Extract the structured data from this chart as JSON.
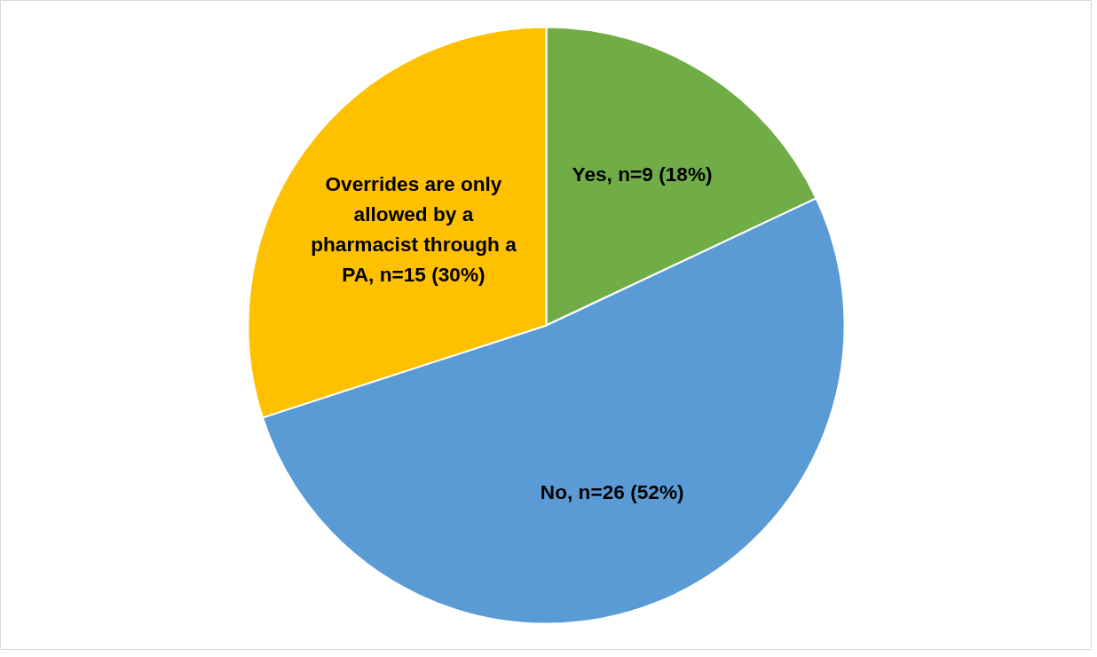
{
  "chart_data": {
    "type": "pie",
    "categories": [
      "Yes, n=9 (18%)",
      "No, n=26 (52%)",
      "Overrides are only allowed by a pharmacist through a PA, n=15 (30%)"
    ],
    "values": [
      18,
      52,
      30
    ],
    "colors": [
      "#70ad47",
      "#5b9bd5",
      "#ffc000"
    ]
  }
}
